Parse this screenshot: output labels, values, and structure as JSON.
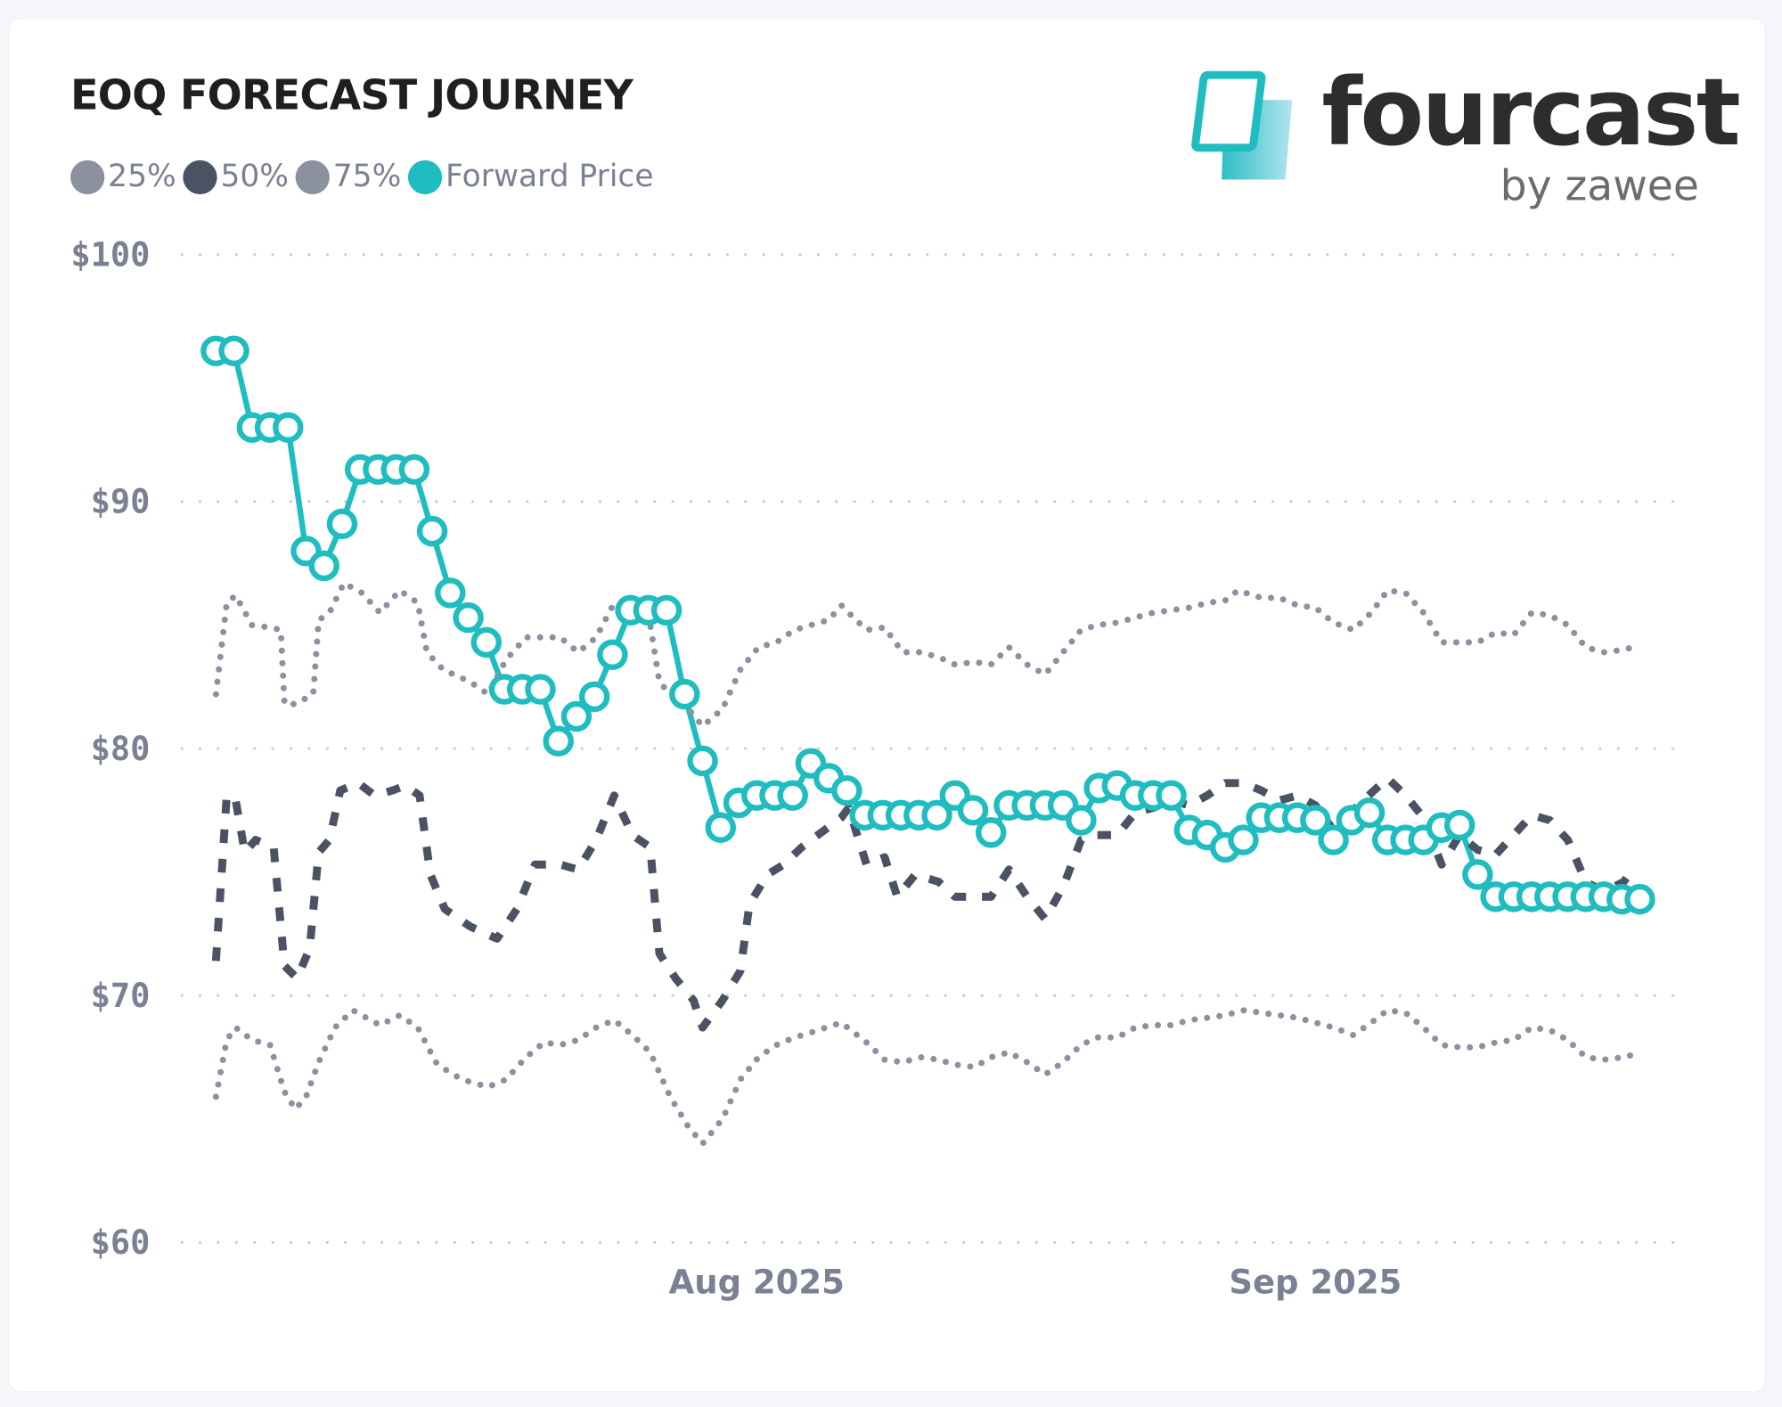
{
  "title": "EOQ FORECAST JOURNEY",
  "logo": {
    "word": "fourcast",
    "sub": "by zawee"
  },
  "legend": [
    {
      "label": "25%",
      "color": "#8c91a0"
    },
    {
      "label": "50%",
      "color": "#4a5264"
    },
    {
      "label": "75%",
      "color": "#8c91a0"
    },
    {
      "label": "Forward Price",
      "color": "#1fbdbf"
    }
  ],
  "chart_data": {
    "type": "line",
    "title": "EOQ FORECAST JOURNEY",
    "xlabel": "",
    "ylabel": "",
    "x_start_date": "2025-07-02",
    "x_unit": "day index (0 = Jul 2 2025)",
    "xlim": [
      -2,
      81
    ],
    "x_ticks": [
      {
        "day": 30,
        "label": "Aug 2025"
      },
      {
        "day": 61,
        "label": "Sep 2025"
      }
    ],
    "ylim": [
      60,
      100
    ],
    "y_ticks": [
      {
        "value": 100,
        "label": "$100"
      },
      {
        "value": 90,
        "label": "$90"
      },
      {
        "value": 80,
        "label": "$80"
      },
      {
        "value": 70,
        "label": "$70"
      },
      {
        "value": 60,
        "label": "$60"
      }
    ],
    "grid": "horizontal dotted",
    "legend_position": "top-left",
    "series": [
      {
        "name": "Forward Price",
        "style": "solid-markers",
        "values": [
          96.1,
          96.1,
          93.0,
          93.0,
          93.0,
          88.0,
          87.4,
          89.1,
          91.3,
          91.3,
          91.3,
          91.3,
          88.8,
          86.3,
          85.3,
          84.3,
          82.4,
          82.4,
          82.4,
          80.3,
          81.3,
          82.1,
          83.8,
          85.6,
          85.6,
          85.6,
          82.2,
          79.5,
          76.8,
          77.8,
          78.1,
          78.1,
          78.1,
          79.4,
          78.8,
          78.3,
          77.3,
          77.3,
          77.3,
          77.3,
          77.3,
          78.1,
          77.5,
          76.6,
          77.7,
          77.7,
          77.7,
          77.7,
          77.1,
          78.4,
          78.5,
          78.1,
          78.1,
          78.1,
          76.7,
          76.5,
          76.0,
          76.3,
          77.2,
          77.2,
          77.2,
          77.1,
          76.3,
          77.1,
          77.4,
          76.3,
          76.3,
          76.3,
          76.8,
          76.9,
          74.9,
          74.0,
          74.0,
          74.0,
          74.0,
          74.0,
          74.0,
          74.0,
          73.9,
          73.9
        ]
      },
      {
        "name": "75%",
        "style": "dotted",
        "points": [
          [
            0,
            82.2
          ],
          [
            0.6,
            85.9
          ],
          [
            1.1,
            86.2
          ],
          [
            2,
            85.0
          ],
          [
            3,
            84.9
          ],
          [
            3.6,
            84.8
          ],
          [
            3.8,
            81.8
          ],
          [
            4.4,
            81.8
          ],
          [
            5.4,
            82.2
          ],
          [
            5.7,
            85.2
          ],
          [
            6.3,
            85.5
          ],
          [
            7.1,
            86.7
          ],
          [
            8.1,
            86.3
          ],
          [
            9.1,
            85.5
          ],
          [
            10.2,
            86.4
          ],
          [
            11.2,
            85.9
          ],
          [
            11.7,
            83.9
          ],
          [
            12.6,
            83.2
          ],
          [
            14.1,
            82.7
          ],
          [
            15.1,
            82.2
          ],
          [
            16.1,
            83.6
          ],
          [
            17.2,
            84.5
          ],
          [
            18.2,
            84.5
          ],
          [
            19.1,
            84.5
          ],
          [
            20.1,
            83.9
          ],
          [
            21.1,
            84.5
          ],
          [
            22.1,
            85.9
          ],
          [
            23.1,
            85.5
          ],
          [
            24.1,
            85.0
          ],
          [
            24.6,
            82.7
          ],
          [
            25.2,
            82.2
          ],
          [
            26,
            81.8
          ],
          [
            27,
            80.9
          ],
          [
            28.1,
            81.6
          ],
          [
            29.1,
            83.2
          ],
          [
            30.1,
            84.1
          ],
          [
            31.1,
            84.3
          ],
          [
            32.1,
            84.8
          ],
          [
            33,
            85.0
          ],
          [
            34,
            85.2
          ],
          [
            34.7,
            85.8
          ],
          [
            35.1,
            85.5
          ],
          [
            36.1,
            84.8
          ],
          [
            37.1,
            84.9
          ],
          [
            38.1,
            83.9
          ],
          [
            39.1,
            83.9
          ],
          [
            40.1,
            83.7
          ],
          [
            41,
            83.4
          ],
          [
            42.1,
            83.5
          ],
          [
            43,
            83.4
          ],
          [
            44,
            84.1
          ],
          [
            45,
            83.4
          ],
          [
            46,
            83.0
          ],
          [
            47,
            83.9
          ],
          [
            48,
            84.8
          ],
          [
            48.9,
            85.0
          ],
          [
            50,
            85.1
          ],
          [
            51,
            85.3
          ],
          [
            52,
            85.5
          ],
          [
            53,
            85.6
          ],
          [
            54,
            85.7
          ],
          [
            55,
            85.9
          ],
          [
            56,
            86.0
          ],
          [
            56.7,
            86.4
          ],
          [
            58,
            86.1
          ],
          [
            59,
            86.1
          ],
          [
            60,
            85.8
          ],
          [
            61,
            85.7
          ],
          [
            62,
            85.1
          ],
          [
            63.1,
            84.8
          ],
          [
            64.1,
            85.5
          ],
          [
            65,
            86.4
          ],
          [
            66,
            86.3
          ],
          [
            67,
            85.5
          ],
          [
            68,
            84.3
          ],
          [
            69,
            84.3
          ],
          [
            70,
            84.3
          ],
          [
            71,
            84.7
          ],
          [
            72,
            84.6
          ],
          [
            73,
            85.5
          ],
          [
            74,
            85.4
          ],
          [
            75,
            85.0
          ],
          [
            76,
            84.1
          ],
          [
            77,
            83.9
          ],
          [
            78.1,
            84.0
          ],
          [
            78.6,
            84.1
          ]
        ]
      },
      {
        "name": "50%",
        "style": "dashed",
        "points": [
          [
            0,
            71.4
          ],
          [
            0.6,
            78.1
          ],
          [
            1.1,
            77.9
          ],
          [
            1.6,
            75.8
          ],
          [
            2.2,
            76.3
          ],
          [
            3.2,
            76.0
          ],
          [
            3.8,
            71.2
          ],
          [
            4.5,
            70.7
          ],
          [
            5.2,
            71.9
          ],
          [
            5.7,
            75.8
          ],
          [
            6.3,
            76.3
          ],
          [
            6.9,
            78.3
          ],
          [
            7.9,
            78.6
          ],
          [
            8.8,
            78.1
          ],
          [
            9.8,
            78.3
          ],
          [
            10.5,
            78.5
          ],
          [
            11.3,
            78.1
          ],
          [
            11.9,
            74.9
          ],
          [
            12.7,
            73.5
          ],
          [
            14.1,
            72.8
          ],
          [
            15.6,
            72.3
          ],
          [
            16.7,
            73.5
          ],
          [
            17.7,
            75.3
          ],
          [
            19.1,
            75.3
          ],
          [
            20.1,
            75.1
          ],
          [
            21.1,
            76.3
          ],
          [
            22.1,
            78.1
          ],
          [
            23.1,
            76.5
          ],
          [
            24.1,
            76.0
          ],
          [
            24.6,
            71.7
          ],
          [
            25.5,
            70.7
          ],
          [
            26.5,
            69.8
          ],
          [
            27,
            68.7
          ],
          [
            28.1,
            69.8
          ],
          [
            29.1,
            71.0
          ],
          [
            29.6,
            73.7
          ],
          [
            30.6,
            74.9
          ],
          [
            31.5,
            75.3
          ],
          [
            32.5,
            76.0
          ],
          [
            33.4,
            76.5
          ],
          [
            34.7,
            77.2
          ],
          [
            35.1,
            77.6
          ],
          [
            36.1,
            75.3
          ],
          [
            37.1,
            75.6
          ],
          [
            37.8,
            74.0
          ],
          [
            38.8,
            74.9
          ],
          [
            40.1,
            74.6
          ],
          [
            41,
            74.0
          ],
          [
            42.1,
            74.0
          ],
          [
            43,
            74.0
          ],
          [
            44,
            75.1
          ],
          [
            45,
            74.0
          ],
          [
            46,
            73.1
          ],
          [
            47,
            74.4
          ],
          [
            48,
            76.3
          ],
          [
            48.9,
            76.5
          ],
          [
            50,
            76.5
          ],
          [
            51,
            77.4
          ],
          [
            52,
            77.6
          ],
          [
            53,
            77.9
          ],
          [
            54,
            77.7
          ],
          [
            55,
            78.1
          ],
          [
            56,
            78.6
          ],
          [
            57,
            78.6
          ],
          [
            58,
            78.3
          ],
          [
            59,
            77.9
          ],
          [
            60,
            78.1
          ],
          [
            61,
            77.7
          ],
          [
            62,
            76.7
          ],
          [
            63.1,
            77.5
          ],
          [
            64.1,
            78.2
          ],
          [
            65,
            78.8
          ],
          [
            66,
            78.1
          ],
          [
            67,
            77.2
          ],
          [
            68,
            75.3
          ],
          [
            69,
            76.5
          ],
          [
            70,
            75.9
          ],
          [
            71,
            75.7
          ],
          [
            72,
            76.5
          ],
          [
            73,
            77.3
          ],
          [
            74,
            77.1
          ],
          [
            75,
            76.3
          ],
          [
            76,
            74.6
          ],
          [
            77,
            74.2
          ],
          [
            78.1,
            74.6
          ],
          [
            78.6,
            75.1
          ]
        ]
      },
      {
        "name": "25%",
        "style": "dotted",
        "points": [
          [
            0,
            65.9
          ],
          [
            0.6,
            68.2
          ],
          [
            1.1,
            68.7
          ],
          [
            2,
            68.2
          ],
          [
            3,
            68.0
          ],
          [
            3.8,
            66.1
          ],
          [
            4.4,
            65.4
          ],
          [
            5,
            65.9
          ],
          [
            5.7,
            67.3
          ],
          [
            6.6,
            68.7
          ],
          [
            7.6,
            69.4
          ],
          [
            9.1,
            68.8
          ],
          [
            10.2,
            69.2
          ],
          [
            11.2,
            68.7
          ],
          [
            12.2,
            67.3
          ],
          [
            13.1,
            66.8
          ],
          [
            14.1,
            66.5
          ],
          [
            15.1,
            66.3
          ],
          [
            16.1,
            66.6
          ],
          [
            17.2,
            67.5
          ],
          [
            18.2,
            68.1
          ],
          [
            19.1,
            68.0
          ],
          [
            20.1,
            68.2
          ],
          [
            21.1,
            68.7
          ],
          [
            22.1,
            69.0
          ],
          [
            23.1,
            68.4
          ],
          [
            24.1,
            67.7
          ],
          [
            25.2,
            65.9
          ],
          [
            26.2,
            64.7
          ],
          [
            27,
            64.0
          ],
          [
            28.1,
            65.0
          ],
          [
            29.1,
            66.6
          ],
          [
            30.1,
            67.5
          ],
          [
            31.1,
            68.0
          ],
          [
            32.1,
            68.3
          ],
          [
            33,
            68.5
          ],
          [
            34.7,
            68.9
          ],
          [
            36.1,
            68.1
          ],
          [
            37.1,
            67.4
          ],
          [
            38.1,
            67.3
          ],
          [
            39.1,
            67.5
          ],
          [
            40.1,
            67.4
          ],
          [
            41,
            67.2
          ],
          [
            42.1,
            67.1
          ],
          [
            43,
            67.5
          ],
          [
            44,
            67.7
          ],
          [
            45,
            67.3
          ],
          [
            46,
            66.8
          ],
          [
            47,
            67.3
          ],
          [
            48,
            68.0
          ],
          [
            48.9,
            68.3
          ],
          [
            50,
            68.3
          ],
          [
            51,
            68.7
          ],
          [
            52,
            68.8
          ],
          [
            53,
            68.8
          ],
          [
            54,
            69.0
          ],
          [
            55,
            69.1
          ],
          [
            56,
            69.2
          ],
          [
            57,
            69.4
          ],
          [
            58,
            69.3
          ],
          [
            59,
            69.2
          ],
          [
            60,
            69.1
          ],
          [
            61,
            68.9
          ],
          [
            62,
            68.7
          ],
          [
            63.1,
            68.4
          ],
          [
            64.1,
            68.9
          ],
          [
            65,
            69.4
          ],
          [
            66,
            69.3
          ],
          [
            67,
            68.7
          ],
          [
            68,
            68.0
          ],
          [
            69,
            67.9
          ],
          [
            70,
            67.9
          ],
          [
            71,
            68.1
          ],
          [
            72,
            68.2
          ],
          [
            73,
            68.7
          ],
          [
            74,
            68.6
          ],
          [
            75,
            68.2
          ],
          [
            76,
            67.5
          ],
          [
            77,
            67.4
          ],
          [
            78.1,
            67.5
          ],
          [
            78.6,
            67.6
          ]
        ]
      }
    ]
  }
}
